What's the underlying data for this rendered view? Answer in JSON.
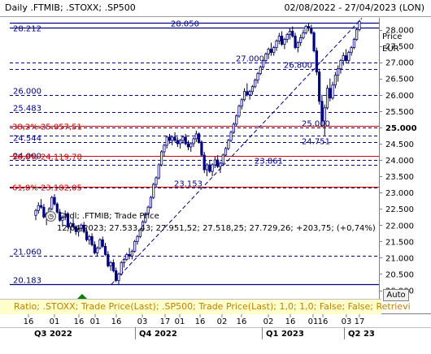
{
  "header": {
    "title": "Daily .FTMIB; .STOXX; .SP500",
    "date_range": "02/08/2022 - 27/04/2023 (LON)"
  },
  "axis": {
    "title_line1": "Price",
    "title_line2": "EUR"
  },
  "tooltip": {
    "label": "Cndl; .FTMIB; Trade Price",
    "values": "12/04/2023; 27.533,43; 27.951,52; 27.518,25; 27.729,26; +203,75; (+0,74%)"
  },
  "status_text": "Ratio; .STOXX; Trade Price(Last); .SP500; Trade Price(Last); 1,0; 1,0; False; False; Retrievi",
  "auto_label": "Auto",
  "colors": {
    "background": "#ffffff",
    "navy": "#000080",
    "fib": "#cc0000",
    "status": "#ffffcc"
  },
  "chart_data": {
    "type": "candlestick",
    "instrument": ".FTMIB",
    "ylim": [
      20000,
      28350
    ],
    "y_ticks": [
      "28.000",
      "27.500",
      "27.000",
      "26.500",
      "26.000",
      "25.500",
      "25.000",
      "24.500",
      "24.000",
      "23.500",
      "23.000",
      "22.500",
      "22.000",
      "21.500",
      "21.000",
      "20.500",
      "20.000"
    ],
    "y_tick_values": [
      28000,
      27500,
      27000,
      26500,
      26000,
      25500,
      25000,
      24500,
      24000,
      23500,
      23000,
      22500,
      22000,
      21500,
      21000,
      20500,
      20000
    ],
    "x_ticks_top": [
      "16",
      "01",
      "16",
      "01",
      "16",
      "03",
      "17",
      "01",
      "16",
      "02",
      "16",
      "02",
      "16",
      "01",
      "16",
      "03",
      "17"
    ],
    "x_ticks_bottom": [
      "Q3 2022",
      "Q4 2022",
      "Q1 2023",
      "Q2 23"
    ],
    "horizontal_levels": [
      {
        "value": 28212,
        "label": "28.212",
        "side": "left",
        "style": "solid"
      },
      {
        "value": 28050,
        "label": "28.050",
        "side": "mid",
        "style": "solid"
      },
      {
        "value": 27000,
        "label": "27.000",
        "side": "mid",
        "style": "dashed"
      },
      {
        "value": 26800,
        "label": "26.800",
        "side": "mid",
        "style": "dashed"
      },
      {
        "value": 26000,
        "label": "26.000",
        "side": "left",
        "style": "dashed"
      },
      {
        "value": 25483,
        "label": "25.483",
        "side": "left",
        "style": "dashed"
      },
      {
        "value": 25000,
        "label": "25.000",
        "side": "right",
        "style": "dashed"
      },
      {
        "value": 24751,
        "label": "24.751",
        "side": "right",
        "style": "dashed"
      },
      {
        "value": 24544,
        "label": "24.544",
        "side": "left",
        "style": "dashed"
      },
      {
        "value": 24000,
        "label": "24.000",
        "side": "left",
        "style": "dashed"
      },
      {
        "value": 23861,
        "label": "23.861",
        "side": "mid",
        "style": "dashed"
      },
      {
        "value": 23153,
        "label": "23.153",
        "side": "mid",
        "style": "dashed"
      },
      {
        "value": 21060,
        "label": "21.060",
        "side": "left",
        "style": "dashed"
      },
      {
        "value": 20183,
        "label": "20.183",
        "side": "left",
        "style": "solid"
      }
    ],
    "fib_levels": [
      {
        "value": 25057.51,
        "label": "38,2% 25.057,51"
      },
      {
        "value": 24119.78,
        "label": "50,0% 24.119,78"
      },
      {
        "value": 23182.05,
        "label": "61,8% 23.182,05"
      }
    ],
    "trendline": {
      "from": "10/2022",
      "from_value": 20183,
      "to": "04/2023",
      "to_value": 28350
    },
    "candles": [
      [
        22300,
        22500,
        22150,
        22450
      ],
      [
        22450,
        22700,
        22350,
        22600
      ],
      [
        22600,
        22800,
        22500,
        22550
      ],
      [
        22550,
        22650,
        22200,
        22250
      ],
      [
        22250,
        22400,
        22000,
        22350
      ],
      [
        22350,
        22550,
        22250,
        22500
      ],
      [
        22500,
        22900,
        22450,
        22850
      ],
      [
        22850,
        22950,
        22600,
        22650
      ],
      [
        22650,
        22700,
        22350,
        22400
      ],
      [
        22400,
        22500,
        22100,
        22150
      ],
      [
        22150,
        22300,
        21950,
        22250
      ],
      [
        22250,
        22450,
        22150,
        22350
      ],
      [
        22350,
        22400,
        21900,
        21950
      ],
      [
        21950,
        22100,
        21750,
        22050
      ],
      [
        22050,
        22200,
        21900,
        21950
      ],
      [
        21950,
        22000,
        21700,
        21800
      ],
      [
        21800,
        21950,
        21650,
        21900
      ],
      [
        21900,
        22050,
        21800,
        22000
      ],
      [
        22000,
        22100,
        21750,
        21800
      ],
      [
        21800,
        21900,
        21500,
        21550
      ],
      [
        21550,
        21700,
        21400,
        21650
      ],
      [
        21650,
        21750,
        21350,
        21400
      ],
      [
        21400,
        21500,
        21100,
        21150
      ],
      [
        21150,
        21350,
        21050,
        21300
      ],
      [
        21300,
        21600,
        21250,
        21550
      ],
      [
        21550,
        21650,
        21300,
        21350
      ],
      [
        21350,
        21450,
        21050,
        21100
      ],
      [
        21100,
        21200,
        20700,
        20750
      ],
      [
        20750,
        20900,
        20600,
        20850
      ],
      [
        20850,
        20950,
        20550,
        20600
      ],
      [
        20600,
        20700,
        20250,
        20300
      ],
      [
        20300,
        20550,
        20183,
        20500
      ],
      [
        20500,
        20900,
        20450,
        20850
      ],
      [
        20850,
        21000,
        20700,
        20950
      ],
      [
        20950,
        21150,
        20900,
        21100
      ],
      [
        21100,
        21300,
        20950,
        21050
      ],
      [
        21050,
        21250,
        20950,
        21200
      ],
      [
        21200,
        21550,
        21150,
        21500
      ],
      [
        21500,
        21700,
        21400,
        21650
      ],
      [
        21650,
        21900,
        21600,
        21850
      ],
      [
        21850,
        22150,
        21800,
        22100
      ],
      [
        22100,
        22400,
        22050,
        22350
      ],
      [
        22350,
        22600,
        22300,
        22550
      ],
      [
        22550,
        22900,
        22500,
        22850
      ],
      [
        22850,
        23300,
        22800,
        23250
      ],
      [
        23250,
        23500,
        23150,
        23450
      ],
      [
        23450,
        23900,
        23400,
        23850
      ],
      [
        23850,
        24300,
        23800,
        24250
      ],
      [
        24250,
        24500,
        24100,
        24450
      ],
      [
        24450,
        24750,
        24350,
        24700
      ],
      [
        24700,
        24800,
        24500,
        24600
      ],
      [
        24600,
        24750,
        24450,
        24700
      ],
      [
        24700,
        24850,
        24550,
        24600
      ],
      [
        24600,
        24700,
        24400,
        24500
      ],
      [
        24500,
        24650,
        24350,
        24600
      ],
      [
        24600,
        24750,
        24500,
        24700
      ],
      [
        24700,
        24800,
        24450,
        24500
      ],
      [
        24500,
        24600,
        24300,
        24400
      ],
      [
        24400,
        24550,
        24250,
        24500
      ],
      [
        24500,
        24700,
        24400,
        24650
      ],
      [
        24650,
        24900,
        24550,
        24800
      ],
      [
        24800,
        24850,
        24500,
        24550
      ],
      [
        24550,
        24600,
        24100,
        24150
      ],
      [
        24150,
        24250,
        23600,
        23700
      ],
      [
        23700,
        23900,
        23500,
        23850
      ],
      [
        23850,
        24000,
        23600,
        23650
      ],
      [
        23650,
        23900,
        23500,
        23850
      ],
      [
        23850,
        24100,
        23750,
        24000
      ],
      [
        24000,
        24150,
        23750,
        23800
      ],
      [
        23800,
        23950,
        23600,
        23900
      ],
      [
        23900,
        24200,
        23850,
        24150
      ],
      [
        24150,
        24400,
        24100,
        24350
      ],
      [
        24350,
        24650,
        24300,
        24600
      ],
      [
        24600,
        24900,
        24550,
        24850
      ],
      [
        24850,
        25150,
        24800,
        25100
      ],
      [
        25100,
        25400,
        25050,
        25350
      ],
      [
        25350,
        25700,
        25300,
        25650
      ],
      [
        25650,
        25900,
        25550,
        25850
      ],
      [
        25850,
        26200,
        25800,
        26100
      ],
      [
        26100,
        26350,
        25950,
        26000
      ],
      [
        26000,
        26150,
        25850,
        26100
      ],
      [
        26100,
        26300,
        26000,
        26250
      ],
      [
        26250,
        26500,
        26200,
        26450
      ],
      [
        26450,
        26700,
        26350,
        26650
      ],
      [
        26650,
        26900,
        26600,
        26850
      ],
      [
        26850,
        27100,
        26800,
        27050
      ],
      [
        27050,
        27300,
        26950,
        27250
      ],
      [
        27250,
        27450,
        27100,
        27400
      ],
      [
        27400,
        27600,
        27200,
        27300
      ],
      [
        27300,
        27500,
        27200,
        27450
      ],
      [
        27450,
        27700,
        27350,
        27650
      ],
      [
        27650,
        27900,
        27550,
        27800
      ],
      [
        27800,
        27950,
        27500,
        27550
      ],
      [
        27550,
        27750,
        27400,
        27700
      ],
      [
        27700,
        27900,
        27600,
        27850
      ],
      [
        27850,
        28050,
        27700,
        27950
      ],
      [
        27950,
        28100,
        27750,
        27800
      ],
      [
        27800,
        27900,
        27400,
        27450
      ],
      [
        27450,
        27650,
        27300,
        27600
      ],
      [
        27600,
        27850,
        27500,
        27750
      ],
      [
        27750,
        28000,
        27700,
        27900
      ],
      [
        27900,
        28150,
        27850,
        28100
      ],
      [
        28100,
        28212,
        27950,
        28050
      ],
      [
        28050,
        28150,
        27850,
        27900
      ],
      [
        27900,
        27950,
        27300,
        27350
      ],
      [
        27350,
        27450,
        26600,
        26700
      ],
      [
        26700,
        26800,
        25700,
        25800
      ],
      [
        25800,
        26000,
        25000,
        25200
      ],
      [
        25200,
        25700,
        24751,
        25600
      ],
      [
        25600,
        26300,
        25550,
        26200
      ],
      [
        26200,
        26500,
        25800,
        25900
      ],
      [
        25900,
        26400,
        25850,
        26300
      ],
      [
        26300,
        26700,
        26200,
        26600
      ],
      [
        26600,
        26900,
        26400,
        26800
      ],
      [
        26800,
        27100,
        26650,
        27050
      ],
      [
        27050,
        27300,
        26900,
        27200
      ],
      [
        27200,
        27400,
        27000,
        27050
      ],
      [
        27050,
        27350,
        26950,
        27300
      ],
      [
        27300,
        27500,
        27200,
        27450
      ],
      [
        27450,
        27750,
        27400,
        27700
      ],
      [
        27700,
        28050,
        27650,
        28000
      ],
      [
        28000,
        28300,
        27950,
        28250
      ]
    ]
  }
}
